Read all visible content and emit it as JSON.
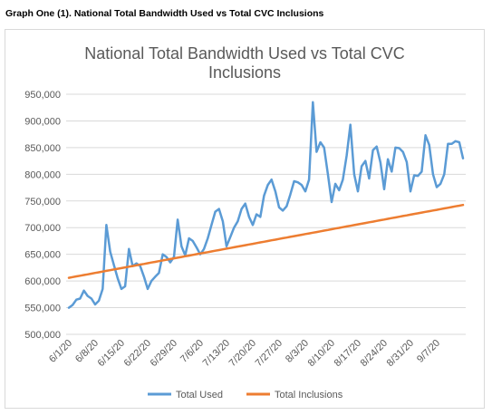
{
  "caption": "Graph One (1). National Total Bandwidth Used vs Total CVC Inclusions",
  "chart_data": {
    "type": "line",
    "title_lines": [
      "National Total Bandwidth Used vs Total CVC",
      "Inclusions"
    ],
    "xlabel": "",
    "ylabel": "",
    "ylim": [
      500000,
      950000
    ],
    "yticks": [
      500000,
      550000,
      600000,
      650000,
      700000,
      750000,
      800000,
      850000,
      900000,
      950000
    ],
    "ytick_labels": [
      "500,000",
      "550,000",
      "600,000",
      "650,000",
      "700,000",
      "750,000",
      "800,000",
      "850,000",
      "900,000",
      "950,000"
    ],
    "xtick_labels": [
      "6/1/20",
      "6/8/20",
      "6/15/20",
      "6/22/20",
      "6/29/20",
      "7/6/20",
      "7/13/20",
      "7/20/20",
      "7/27/20",
      "8/3/20",
      "8/10/20",
      "8/17/20",
      "8/24/20",
      "8/31/20",
      "9/7/20"
    ],
    "grid": true,
    "legend_position": "bottom",
    "series": [
      {
        "name": "Total Used",
        "color": "#5b9bd5",
        "values": [
          550000,
          555000,
          565000,
          567000,
          582000,
          572000,
          567000,
          556000,
          563000,
          585000,
          705000,
          655000,
          630000,
          605000,
          585000,
          590000,
          660000,
          628000,
          633000,
          628000,
          608000,
          585000,
          600000,
          608000,
          615000,
          650000,
          645000,
          635000,
          645000,
          715000,
          665000,
          648000,
          680000,
          675000,
          663000,
          650000,
          660000,
          680000,
          705000,
          730000,
          735000,
          712000,
          665000,
          682000,
          700000,
          712000,
          735000,
          745000,
          720000,
          705000,
          725000,
          720000,
          760000,
          780000,
          790000,
          768000,
          738000,
          732000,
          740000,
          762000,
          787000,
          785000,
          780000,
          768000,
          790000,
          935000,
          842000,
          860000,
          850000,
          800000,
          748000,
          782000,
          770000,
          790000,
          835000,
          893000,
          800000,
          768000,
          815000,
          825000,
          792000,
          845000,
          852000,
          822000,
          772000,
          828000,
          805000,
          850000,
          849000,
          842000,
          823000,
          768000,
          798000,
          797000,
          805000,
          873000,
          855000,
          800000,
          776000,
          782000,
          800000,
          857000,
          857000,
          862000,
          860000,
          830000
        ]
      },
      {
        "name": "Total Inclusions",
        "color": "#ed7d31",
        "values": [
          606000,
          607300,
          608600,
          609900,
          611200,
          612500,
          613800,
          615100,
          616400,
          617700,
          619000,
          620300,
          621600,
          622900,
          624200,
          625500,
          626800,
          628100,
          629400,
          630700,
          632000,
          633300,
          634600,
          635900,
          637200,
          638500,
          639800,
          641100,
          642400,
          643700,
          645000,
          646300,
          647600,
          648900,
          650200,
          651500,
          652800,
          654100,
          655400,
          656700,
          658000,
          659300,
          660600,
          661900,
          663200,
          664500,
          665800,
          667100,
          668400,
          669700,
          671000,
          672300,
          673600,
          674900,
          676200,
          677500,
          678800,
          680100,
          681400,
          682700,
          684000,
          685300,
          686600,
          687900,
          689200,
          690500,
          691800,
          693100,
          694400,
          695700,
          697000,
          698300,
          699600,
          700900,
          702200,
          703500,
          704800,
          706100,
          707400,
          708700,
          710000,
          711300,
          712600,
          713900,
          715200,
          716500,
          717800,
          719100,
          720400,
          721700,
          723000,
          724300,
          725600,
          726900,
          728200,
          729500,
          730800,
          732100,
          733400,
          734700,
          736000,
          737300,
          738600,
          739900,
          741200,
          742500
        ]
      }
    ]
  }
}
